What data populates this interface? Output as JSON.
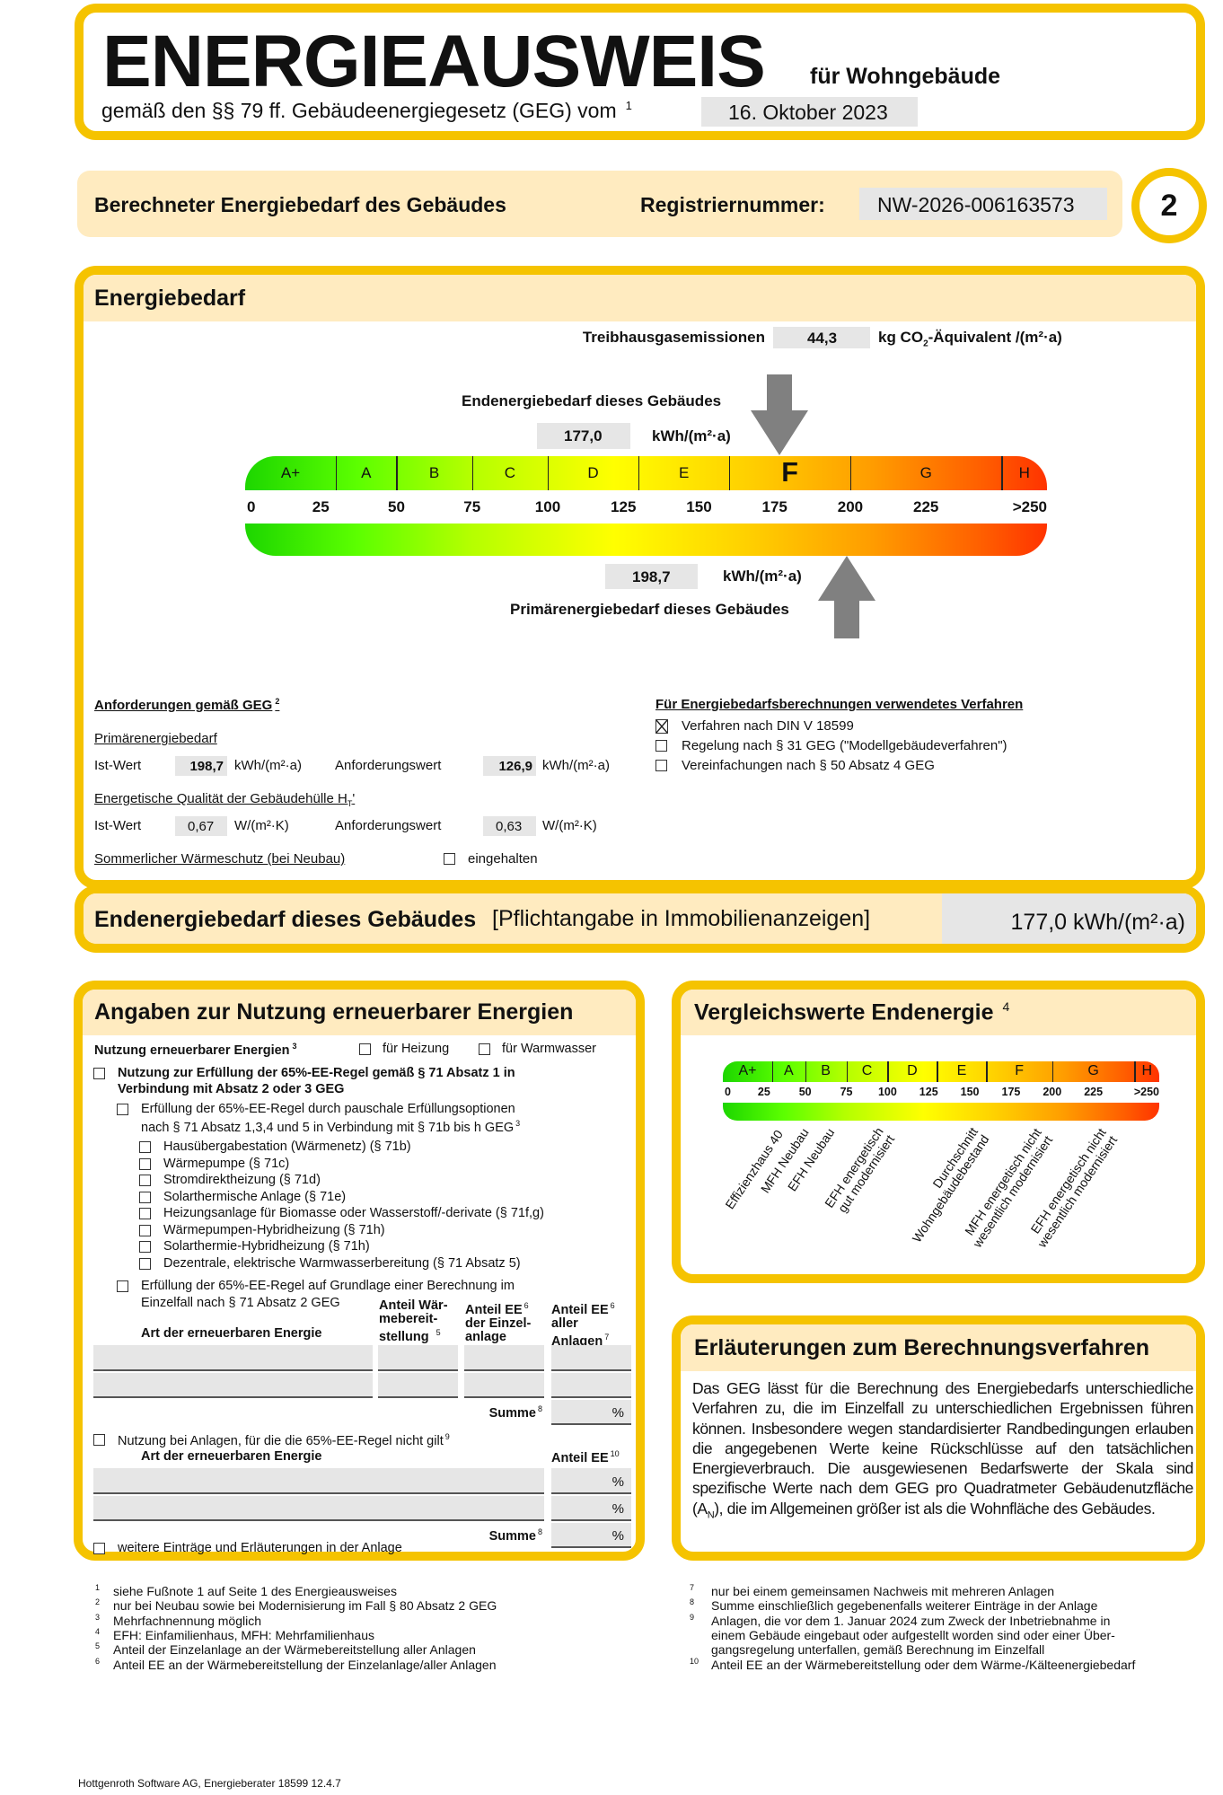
{
  "header": {
    "title": "ENERGIEAUSWEIS",
    "subtitle": "für Wohngebäude",
    "law_text": "gemäß den §§ 79 ff. Gebäudeenergiegesetz (GEG) vom",
    "law_footnote": "1",
    "law_date": "16. Oktober 2023"
  },
  "band": {
    "label": "Berechneter Energiebedarf des Gebäudes",
    "reg_label": "Registriernummer:",
    "reg_number": "NW-2026-006163573",
    "page_number": "2"
  },
  "energiebedarf": {
    "title": "Energiebedarf",
    "ghg_label": "Treibhausgasemissionen",
    "ghg_value": "44,3",
    "ghg_unit_pre": "kg CO",
    "ghg_unit_sub": "2",
    "ghg_unit_post": "-Äquivalent /(m²·a)",
    "end_label": "Endenergiebedarf dieses Gebäudes",
    "end_value": "177,0",
    "end_value_num": 177.0,
    "primary_label": "Primärenergiebedarf dieses Gebäudes",
    "primary_value": "198,7",
    "primary_value_num": 198.7,
    "unit": "kWh/(m²·a)",
    "active_class": "F"
  },
  "scale": {
    "classes": [
      {
        "label": "A+",
        "from": 0,
        "to": 30
      },
      {
        "label": "A",
        "from": 30,
        "to": 50
      },
      {
        "label": "B",
        "from": 50,
        "to": 75
      },
      {
        "label": "C",
        "from": 75,
        "to": 100
      },
      {
        "label": "D",
        "from": 100,
        "to": 130
      },
      {
        "label": "E",
        "from": 130,
        "to": 160
      },
      {
        "label": "F",
        "from": 160,
        "to": 200
      },
      {
        "label": "G",
        "from": 200,
        "to": 250
      },
      {
        "label": "H",
        "from": 250,
        "to": null
      }
    ],
    "ticks": [
      {
        "label": "0",
        "value": 0
      },
      {
        "label": "25",
        "value": 25
      },
      {
        "label": "50",
        "value": 50
      },
      {
        "label": "75",
        "value": 75
      },
      {
        "label": "100",
        "value": 100
      },
      {
        "label": "125",
        "value": 125
      },
      {
        "label": "150",
        "value": 150
      },
      {
        "label": "175",
        "value": 175
      },
      {
        "label": "200",
        "value": 200
      },
      {
        "label": "225",
        "value": 225
      },
      {
        "label": ">250",
        "value": 250
      }
    ],
    "colors": {
      "green": "#1DD600",
      "yellow": "#FFFF00",
      "orange": "#FF9D00",
      "red": "#FF3300",
      "arrow": "#808080",
      "frame": "#F5C300",
      "band": "#FFEBC0"
    }
  },
  "requirements": {
    "title": "Anforderungen gemäß GEG",
    "title_fn": "2",
    "primary_title": "Primärenergiebedarf",
    "ist_label": "Ist-Wert",
    "anf_label": "Anforderungswert",
    "primary_ist": "198,7",
    "primary_anf": "126,9",
    "primary_unit": "kWh/(m²·a)",
    "ht_title": "Energetische Qualität der Gebäudehülle H",
    "ht_sub": "T",
    "ht_prime": "'",
    "ht_ist": "0,67",
    "ht_anf": "0,63",
    "ht_unit": "W/(m²·K)",
    "summer_label": "Sommerlicher Wärmeschutz (bei Neubau)",
    "summer_check": "eingehalten",
    "summer_checked": false
  },
  "verfahren": {
    "title": "Für Energiebedarfsberechnungen verwendetes Verfahren",
    "options": [
      {
        "label": "Verfahren nach DIN V 18599",
        "checked": true
      },
      {
        "label": "Regelung nach § 31 GEG (\"Modellgebäudeverfahren\")",
        "checked": false
      },
      {
        "label": "Vereinfachungen nach § 50 Absatz 4 GEG",
        "checked": false
      }
    ]
  },
  "summary": {
    "label": "Endenergiebedarf dieses Gebäudes",
    "note": "[Pflichtangabe in Immobilienanzeigen]",
    "value": "177,0 kWh/(m²·a)"
  },
  "renewable": {
    "title": "Angaben zur Nutzung erneuerbarer Energien",
    "usage_label": "Nutzung erneuerbarer Energien",
    "usage_fn": "3",
    "heating": "für Heizung",
    "hot_water": "für Warmwasser",
    "rule_line1": "Nutzung zur Erfüllung der 65%-EE-Regel gemäß § 71 Absatz 1 in",
    "rule_line2": "Verbindung mit Absatz 2 oder 3 GEG",
    "flat_line1": "Erfüllung der 65%-EE-Regel durch pauschale Erfüllungsoptionen",
    "flat_line2": "nach § 71 Absatz 1,3,4 und 5 in Verbindung mit § 71b bis h GEG",
    "flat_fn": "3",
    "options": [
      "Hausübergabestation (Wärmenetz) (§ 71b)",
      "Wärmepumpe (§ 71c)",
      "Stromdirektheizung (§ 71d)",
      "Solarthermische Anlage (§ 71e)",
      "Heizungsanlage für Biomasse oder Wasserstoff/-derivate (§ 71f,g)",
      "Wärmepumpen-Hybridheizung (§ 71h)",
      "Solarthermie-Hybridheizung (§ 71h)",
      "Dezentrale, elektrische Warmwasserbereitung (§ 71 Absatz 5)"
    ],
    "calc_line1": "Erfüllung der 65%-EE-Regel auf Grundlage einer Berechnung im",
    "calc_line2": "Einzelfall nach § 71 Absatz 2 GEG",
    "col_type": "Art der erneuerbaren Energie",
    "col_share_l1": "Anteil Wär-",
    "col_share_l2": "mebereit-",
    "col_share_l3": "stellung",
    "col_share_fn": "5",
    "col_ee_single_l1": "Anteil EE",
    "col_ee_single_fn": "6",
    "col_ee_single_l2": "der Einzel-",
    "col_ee_single_l3": "anlage",
    "col_ee_all_l1": "Anteil EE",
    "col_ee_all_fn": "6",
    "col_ee_all_l2": "aller",
    "col_ee_all_l3": "Anlagen",
    "col_ee_all_fn2": "7",
    "sum_label": "Summe",
    "sum_fn": "8",
    "percent": "%",
    "notapplicable_label": "Nutzung bei Anlagen, für die die 65%-EE-Regel nicht gilt",
    "notapplicable_fn": "9",
    "col_ee": "Anteil EE",
    "col_ee_fn": "10",
    "more_label": "weitere Einträge und Erläuterungen in der Anlage"
  },
  "comparison": {
    "title": "Vergleichswerte Endenergie",
    "title_fn": "4",
    "labels": [
      [
        "Effizienzhaus 40"
      ],
      [
        "MFH Neubau"
      ],
      [
        "EFH Neubau"
      ],
      [
        "EFH energetisch",
        "gut modernisiert"
      ],
      [
        "Durchschnitt",
        "Wohngebäudebestand"
      ],
      [
        "MFH energetisch nicht",
        "wesentlich modernisiert"
      ],
      [
        "EFH energetisch nicht",
        "wesentlich modernisiert"
      ]
    ]
  },
  "explanation": {
    "title": "Erläuterungen zum Berechnungsverfahren",
    "text_before": "Das GEG lässt für die Berechnung des Energiebedarfs unterschiedliche Verfahren zu, die im Einzelfall zu unterschiedlichen Ergebnissen führen können. Insbesondere wegen standardisierter Randbedingungen erlauben die angegebenen Werte keine Rückschlüsse auf den tatsächlichen Energieverbrauch. Die ausgewiesenen Bedarfswerte der Skala sind spezifische Werte nach dem GEG pro Quadratmeter Gebäudenutzfläche (A",
    "text_sub": "N",
    "text_after": "), die im Allgemeinen größer ist als die Wohnfläche des Gebäudes."
  },
  "footnotes_left": [
    {
      "n": "1",
      "text": "siehe Fußnote 1 auf Seite 1 des Energieausweises"
    },
    {
      "n": "2",
      "text": "nur bei Neubau sowie bei Modernisierung im Fall § 80 Absatz 2 GEG"
    },
    {
      "n": "3",
      "text": "Mehrfachnennung möglich"
    },
    {
      "n": "4",
      "text": "EFH: Einfamilienhaus, MFH: Mehrfamilienhaus"
    },
    {
      "n": "5",
      "text": "Anteil der Einzelanlage an der Wärmebereitstellung aller Anlagen"
    },
    {
      "n": "6",
      "text": "Anteil EE an der Wärmebereitstellung der Einzelanlage/aller Anlagen"
    }
  ],
  "footnotes_right": [
    {
      "n": "7",
      "text": "nur bei einem gemeinsamen Nachweis mit mehreren Anlagen"
    },
    {
      "n": "8",
      "text": "Summe einschließlich gegebenenfalls weiterer Einträge in der Anlage"
    },
    {
      "n": "9",
      "text": "Anlagen, die vor dem 1. Januar 2024 zum Zweck der Inbetriebnahme in"
    },
    {
      "n": "",
      "text": "einem Gebäude eingebaut oder aufgestellt worden sind oder einer Über-"
    },
    {
      "n": "",
      "text": "gangsregelung unterfallen, gemäß Berechnung im Einzelfall"
    },
    {
      "n": "10",
      "text": "Anteil EE an der Wärmebereitstellung oder dem Wärme-/Kälteenergiebedarf"
    }
  ],
  "footer": "Hottgenroth Software AG, Energieberater 18599 12.4.7"
}
